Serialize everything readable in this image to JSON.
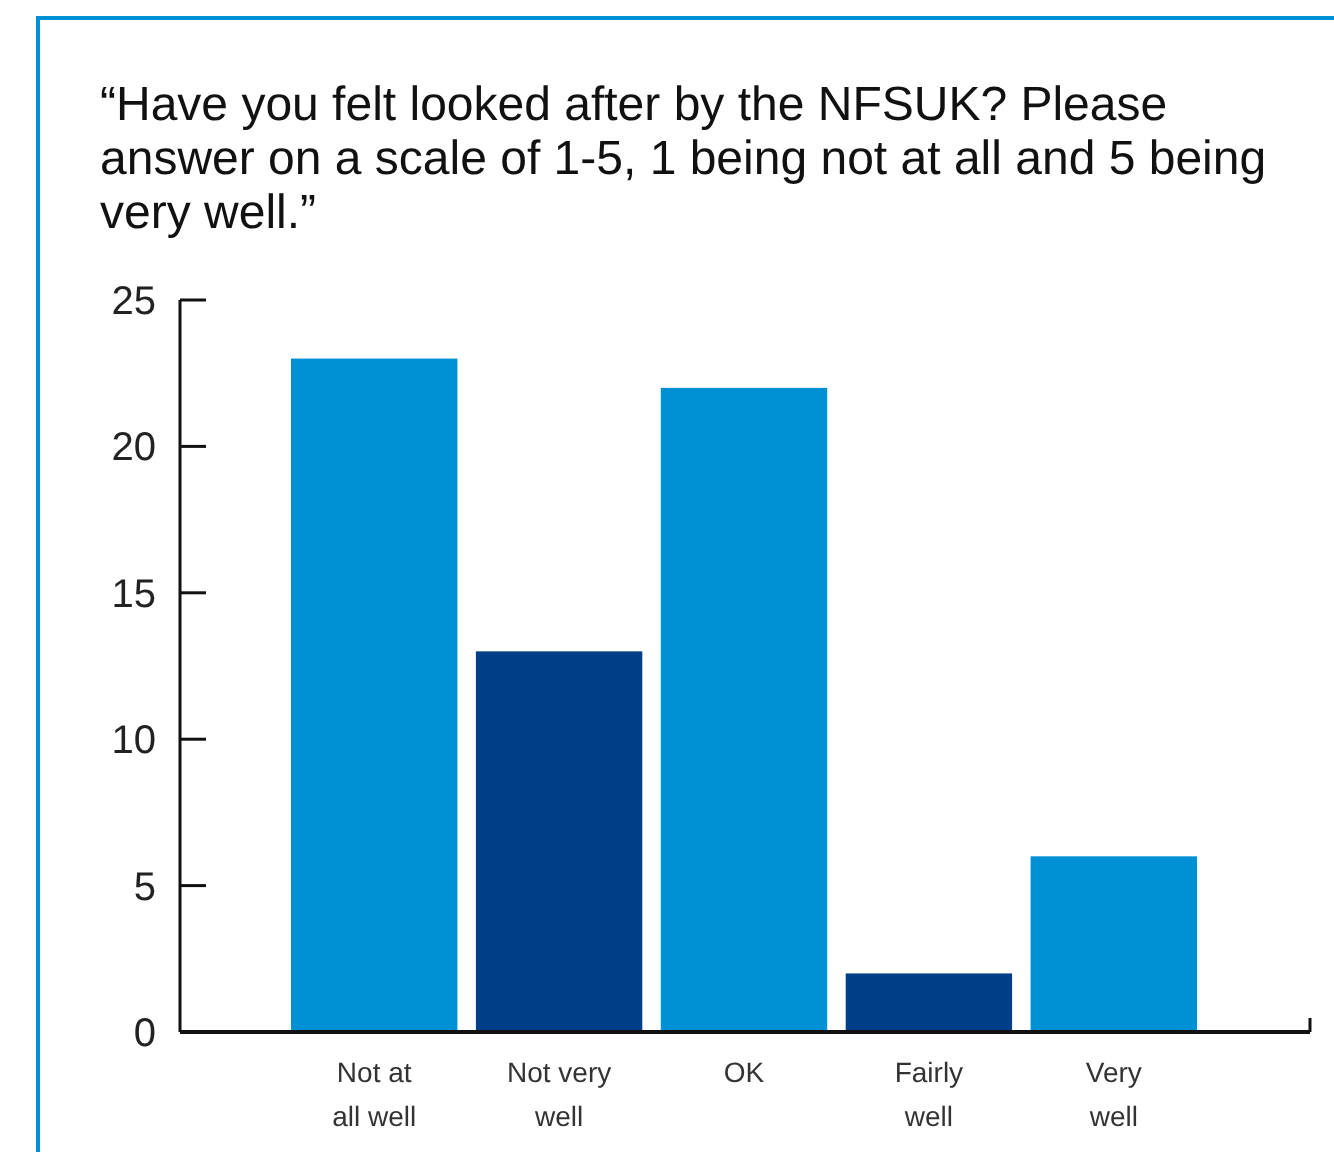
{
  "chart_data": {
    "type": "bar",
    "title": "“Have you felt looked after by the NFSUK? Please answer on a scale of 1-5, 1 being not at all and 5 being very well.”",
    "categories": [
      "Not at all well",
      "Not very well",
      "OK",
      "Fairly well",
      "Very well"
    ],
    "values": [
      23,
      13,
      22,
      2,
      6
    ],
    "colors": [
      "#0090d4",
      "#003f87",
      "#0090d4",
      "#003f87",
      "#0090d4"
    ],
    "ylim": [
      0,
      25
    ],
    "yticks": [
      0,
      5,
      10,
      15,
      20,
      25
    ],
    "grid": false
  }
}
